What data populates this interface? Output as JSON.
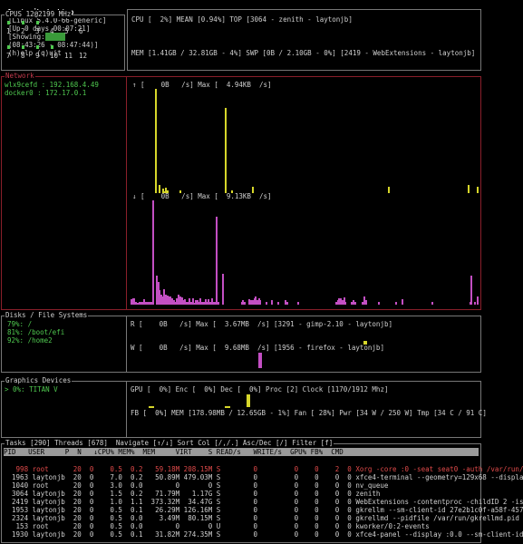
{
  "titlebar": {
    "host": "laytonjb-desktop",
    "kernel": "[Linux 5.4.0-66-generic]",
    "uptime": "[Up 0 days 00:07:21]",
    "showing": "[Showing:",
    "range": "(08:43:26 - 08:47:44)]",
    "help": "(h)elp (q)uit"
  },
  "cpus": {
    "legend": "CPUS 12@2199 MHz",
    "labels": [
      "1",
      "2",
      "3",
      "4",
      "5",
      "6",
      "7",
      "8",
      "9",
      "10",
      "11",
      "12"
    ],
    "summary": "CPU [  2%] MEAN [0.94%] TOP [3064 - zenith - laytonjb]",
    "mem": "MEM [1.41GB / 32.81GB - 4%] SWP [0B / 2.10GB - 0%] [2419 - WebExtensions - laytonjb]"
  },
  "network": {
    "legend": "Network",
    "ifaces": [
      "wlx9cefd : 192.168.4.49",
      "docker0 : 172.17.0.1"
    ],
    "up": "↑ [    0B   /s] Max [  4.94KB  /s]",
    "down": "↓ [    0B   /s] Max [  9.13KB  /s]",
    "up_bars": [
      0,
      0,
      0,
      0,
      0,
      0,
      0,
      0,
      0,
      0,
      0,
      0,
      0,
      0,
      100,
      0,
      8,
      0,
      4,
      2,
      5,
      3,
      0,
      0,
      0,
      0,
      0,
      0,
      3,
      0,
      0,
      0,
      0,
      0,
      0,
      0,
      0,
      0,
      0,
      0,
      0,
      0,
      0,
      0,
      0,
      0,
      0,
      0,
      0,
      0,
      0,
      0,
      0,
      0,
      82,
      0,
      0,
      0,
      3,
      0,
      0,
      0,
      0,
      0,
      0,
      0,
      0,
      0,
      0,
      0,
      6,
      0,
      0,
      0,
      0,
      0,
      0,
      0,
      0,
      0,
      0,
      0,
      0,
      0,
      0,
      0,
      0,
      0,
      0,
      0,
      0,
      0,
      0,
      0,
      0,
      0,
      0,
      0,
      0,
      0,
      0,
      0,
      0,
      0,
      0,
      0,
      0,
      0,
      0,
      0,
      0,
      0,
      0,
      0,
      0,
      0,
      0,
      0,
      0,
      0,
      0,
      0,
      0,
      0,
      0,
      0,
      0,
      0,
      0,
      0,
      0,
      0,
      0,
      0,
      0,
      0,
      0,
      0,
      0,
      0,
      0,
      0,
      0,
      0,
      0,
      0,
      0,
      0,
      6,
      0,
      0,
      0,
      0,
      0,
      0,
      0,
      0,
      0,
      0,
      0,
      0,
      0,
      0,
      0,
      0,
      0,
      0,
      0,
      0,
      0,
      0,
      0,
      0,
      0,
      0,
      0,
      0,
      0,
      0,
      0,
      0,
      0,
      0,
      0,
      0,
      0,
      0,
      0,
      0,
      0,
      0,
      0,
      0,
      0,
      8,
      0,
      0,
      0,
      0,
      6
    ],
    "down_bars": [
      5,
      6,
      6,
      3,
      2,
      3,
      3,
      3,
      5,
      3,
      3,
      3,
      3,
      3,
      100,
      0,
      28,
      22,
      14,
      10,
      8,
      15,
      10,
      9,
      8,
      8,
      6,
      4,
      3,
      6,
      10,
      8,
      7,
      4,
      5,
      3,
      3,
      6,
      3,
      6,
      2,
      4,
      4,
      3,
      6,
      3,
      3,
      5,
      3,
      5,
      3,
      6,
      3,
      3,
      84,
      3,
      0,
      0,
      30,
      0,
      0,
      0,
      0,
      0,
      0,
      0,
      0,
      0,
      0,
      0,
      3,
      4,
      3,
      0,
      0,
      5,
      4,
      4,
      6,
      8,
      4,
      6,
      4,
      0,
      0,
      0,
      3,
      0,
      0,
      4,
      0,
      0,
      0,
      3,
      0,
      0,
      0,
      0,
      4,
      3,
      0,
      0,
      0,
      0,
      0,
      0,
      3,
      0,
      0,
      0,
      0,
      0,
      0,
      0,
      0,
      0,
      0,
      0,
      0,
      0,
      0,
      0,
      0,
      0,
      0,
      0,
      0,
      0,
      0,
      0,
      3,
      4,
      6,
      6,
      4,
      7,
      3,
      0,
      0,
      0,
      3,
      4,
      3,
      0,
      0,
      0,
      0,
      3,
      8,
      4,
      0,
      0,
      0,
      0,
      0,
      0,
      0,
      3,
      0,
      0,
      0,
      0,
      0,
      0,
      0,
      0,
      0,
      0,
      3,
      0,
      0,
      0,
      5,
      0,
      0,
      0,
      0,
      0,
      0,
      0,
      0,
      0,
      0,
      0,
      0,
      0,
      0,
      0,
      0,
      0,
      0,
      3,
      0,
      0,
      0,
      0,
      0,
      0,
      0,
      0,
      0,
      0,
      0,
      0,
      0,
      0,
      0,
      0,
      0,
      0,
      0,
      0,
      0,
      0,
      0,
      3,
      28,
      0,
      3,
      0,
      8
    ]
  },
  "disks": {
    "legend": "Disks / File Systems",
    "mounts": [
      "79%: /",
      "81%: /boot/efi",
      "92%: /home2"
    ],
    "read": "R [    0B   /s] Max [  3.67MB  /s] [3291 - gimp-2.10 - laytonjb]",
    "write": "W [    0B   /s] Max [  9.68MB  /s] [1956 - firefox - laytonjb]"
  },
  "gpu": {
    "legend": "Graphics Devices",
    "devices": [
      "> 0%: TITAN V"
    ],
    "line1": "GPU [  0%] Enc [  0%] Dec [  0%] Proc [2] Clock [1170/1912 Mhz]",
    "line2": "FB [  0%] MEM [178.98MB / 12.65GB - 1%] Fan [ 28%] Pwr [34 W / 250 W] Tmp [34 C / 91 C]"
  },
  "tasks": {
    "legend": "Tasks [290] Threads [678]  Navigate [↑/↓] Sort Col [/,/.] Asc/Dec [/] Filter [f]",
    "header": "PID   USER     P  N   ↓CPU% MEM%  MEM     VIRT    S READ/s   WRITE/s  GPU% FB%  CMD",
    "rows": [
      "   998 root      20  0    0.5  0.2   59.18M 208.15M S        0         0    0    2  0 Xorg -core :0 -seat seat0 -auth /var/run/",
      "  1963 laytonjb  20  0    7.0  0.2   50.89M 479.03M S        0         0    0    0  0 xfce4-terminal --geometry=129x68 --displa",
      "  1040 root      20  0    3.0  0.0        0       0 S        0         0    0    0  0 nv_queue",
      "  3064 laytonjb  20  0    1.5  0.2   71.79M   1.17G S        0         0    0    0  0 zenith",
      "  2419 laytonjb  20  0    1.0  1.1  373.32M  34.47G S        0         0    0    0  0 WebExtensions -contentproc -childID 2 -is",
      "  1953 laytonjb  20  0    0.5  0.1   26.29M 126.16M S        0         0    0    0  0 gkrellm --sm-client-id 27e2b1c0f-a58f-457",
      "  2324 laytonjb  20  0    0.5  0.0    3.49M  80.15M S        0         0    0    0  0 gkrellmd --pidfile /var/run/gkrellmd.pid",
      "   153 root      20  0    0.5  0.0        0       0 U        0         0    0    0  0 kworker/0:2-events",
      "  1930 laytonjb  20  0    0.5  0.1   31.82M 274.35M S        0         0    0    0  0 xfce4-panel --display :0.0 --sm-client-id"
    ]
  },
  "colors": {
    "yellow": "#d6d62a",
    "magenta": "#c34fc3",
    "green": "#4fc84f",
    "red": "#8a1f2a"
  }
}
